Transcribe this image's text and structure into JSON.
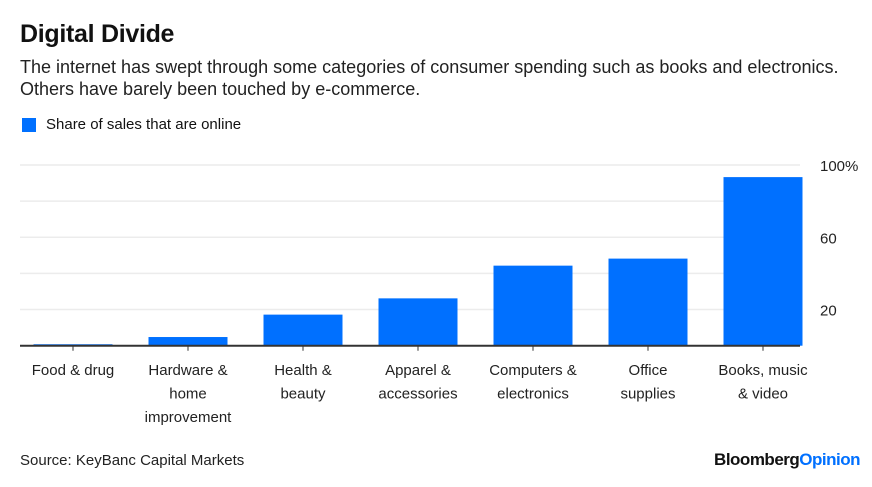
{
  "title": "Digital Divide",
  "subtitle": "The internet has swept through some categories of consumer spending such as books and electronics. Others have barely been touched by e-commerce.",
  "source": "Source: KeyBanc Capital Markets",
  "logo": {
    "part1": "Bloomberg",
    "part2": "Opinion"
  },
  "colors": {
    "bar": "#0070ff",
    "logo_accent": "#0070ff"
  },
  "chart_data": {
    "type": "bar",
    "categories": [
      [
        "Food & drug"
      ],
      [
        "Hardware &",
        "home",
        "improvement"
      ],
      [
        "Health &",
        "beauty"
      ],
      [
        "Apparel &",
        "accessories"
      ],
      [
        "Computers &",
        "electronics"
      ],
      [
        "Office",
        "supplies"
      ],
      [
        "Books, music",
        "& video"
      ]
    ],
    "series": [
      {
        "name": "Share of sales that are online",
        "values": [
          0.8,
          4.8,
          17.2,
          26.2,
          44.3,
          48.2,
          93.3
        ]
      }
    ],
    "ylim": [
      0,
      100
    ],
    "yticks": [
      {
        "value": 20,
        "label": "20"
      },
      {
        "value": 60,
        "label": "60"
      },
      {
        "value": 100,
        "label": "100%"
      }
    ],
    "gridlines": [
      20,
      40,
      60,
      80,
      100
    ],
    "grid": true,
    "axis_position": "right",
    "legend": "top-left"
  }
}
